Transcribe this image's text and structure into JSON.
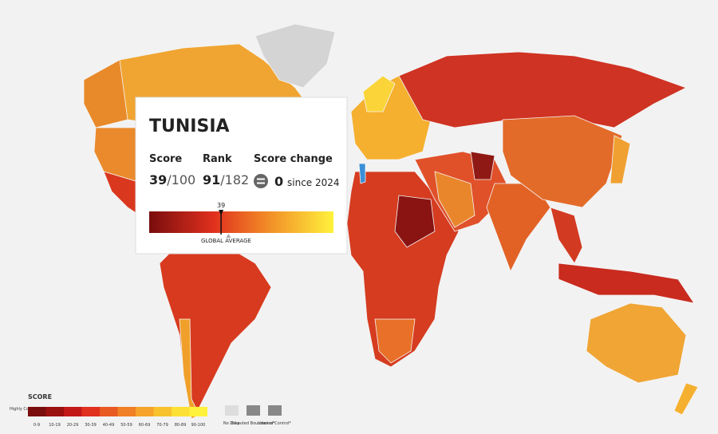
{
  "tooltip": {
    "country": "TUNISIA",
    "score_heading": "Score",
    "score": 39,
    "score_max": "/100",
    "rank_heading": "Rank",
    "rank": 91,
    "rank_total": "/182",
    "change_heading": "Score change",
    "change": 0,
    "change_since": "since 2024",
    "marker_value": 39,
    "global_average": 43,
    "average_label": "GLOBAL AVERAGE",
    "bar_xlim": [
      0,
      100
    ]
  },
  "legend": {
    "title": "SCORE",
    "low_label": "Highly Corrupt",
    "ranges": [
      {
        "label": "0-9",
        "color": "#7a0d0d"
      },
      {
        "label": "10-19",
        "color": "#9b1010"
      },
      {
        "label": "20-29",
        "color": "#c31818"
      },
      {
        "label": "30-39",
        "color": "#e0301e"
      },
      {
        "label": "40-49",
        "color": "#e85a22"
      },
      {
        "label": "50-59",
        "color": "#f07f25"
      },
      {
        "label": "60-69",
        "color": "#f5a32a"
      },
      {
        "label": "70-79",
        "color": "#f8c22e"
      },
      {
        "label": "80-89",
        "color": "#fde036"
      },
      {
        "label": "90-100",
        "color": "#fff23c"
      }
    ],
    "no_data": "No Data",
    "disputed": "Disputed Boundaries*",
    "lines": "Lines of Control*"
  }
}
